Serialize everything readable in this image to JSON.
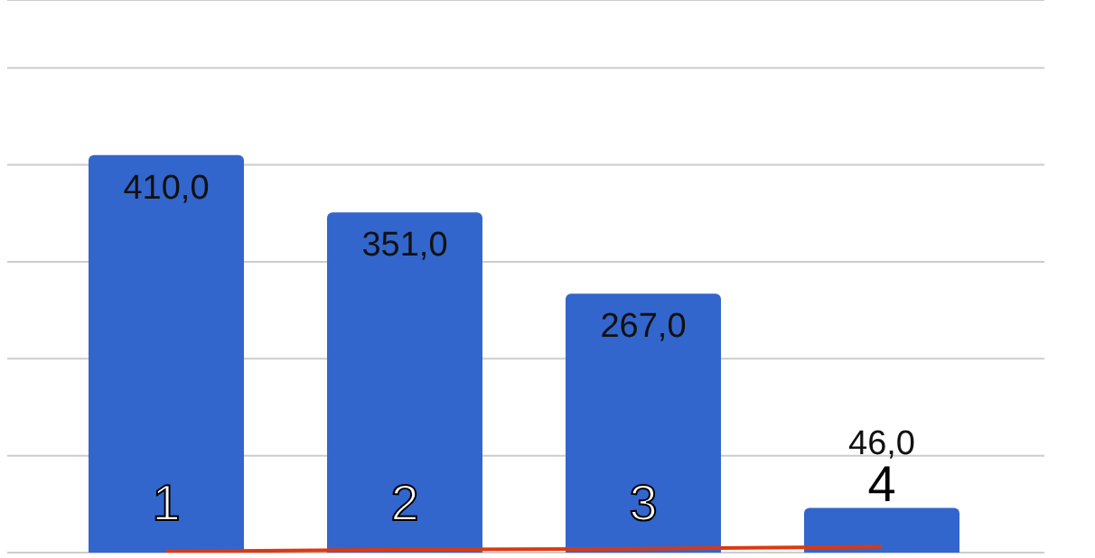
{
  "chart_data": {
    "type": "bar",
    "categories": [
      "1",
      "2",
      "3",
      "4"
    ],
    "series": [
      {
        "color": "#3366cc",
        "values": [
          410,
          351,
          267,
          46
        ],
        "value_labels": [
          "410,0",
          "351,0",
          "267,0",
          "46,0"
        ]
      },
      {
        "type": "line",
        "color": "#dc3912",
        "values": [
          1,
          3,
          4,
          6
        ]
      }
    ],
    "ylim": [
      0,
      570
    ],
    "yticks": [
      {
        "value": 100,
        "label": null
      },
      {
        "value": 200,
        "label": null
      },
      {
        "value": 300,
        "label": null
      },
      {
        "value": 400,
        "label": null
      },
      {
        "value": 500,
        "label": null
      }
    ],
    "grid": "y",
    "tick_labels": false,
    "marker": "none"
  }
}
